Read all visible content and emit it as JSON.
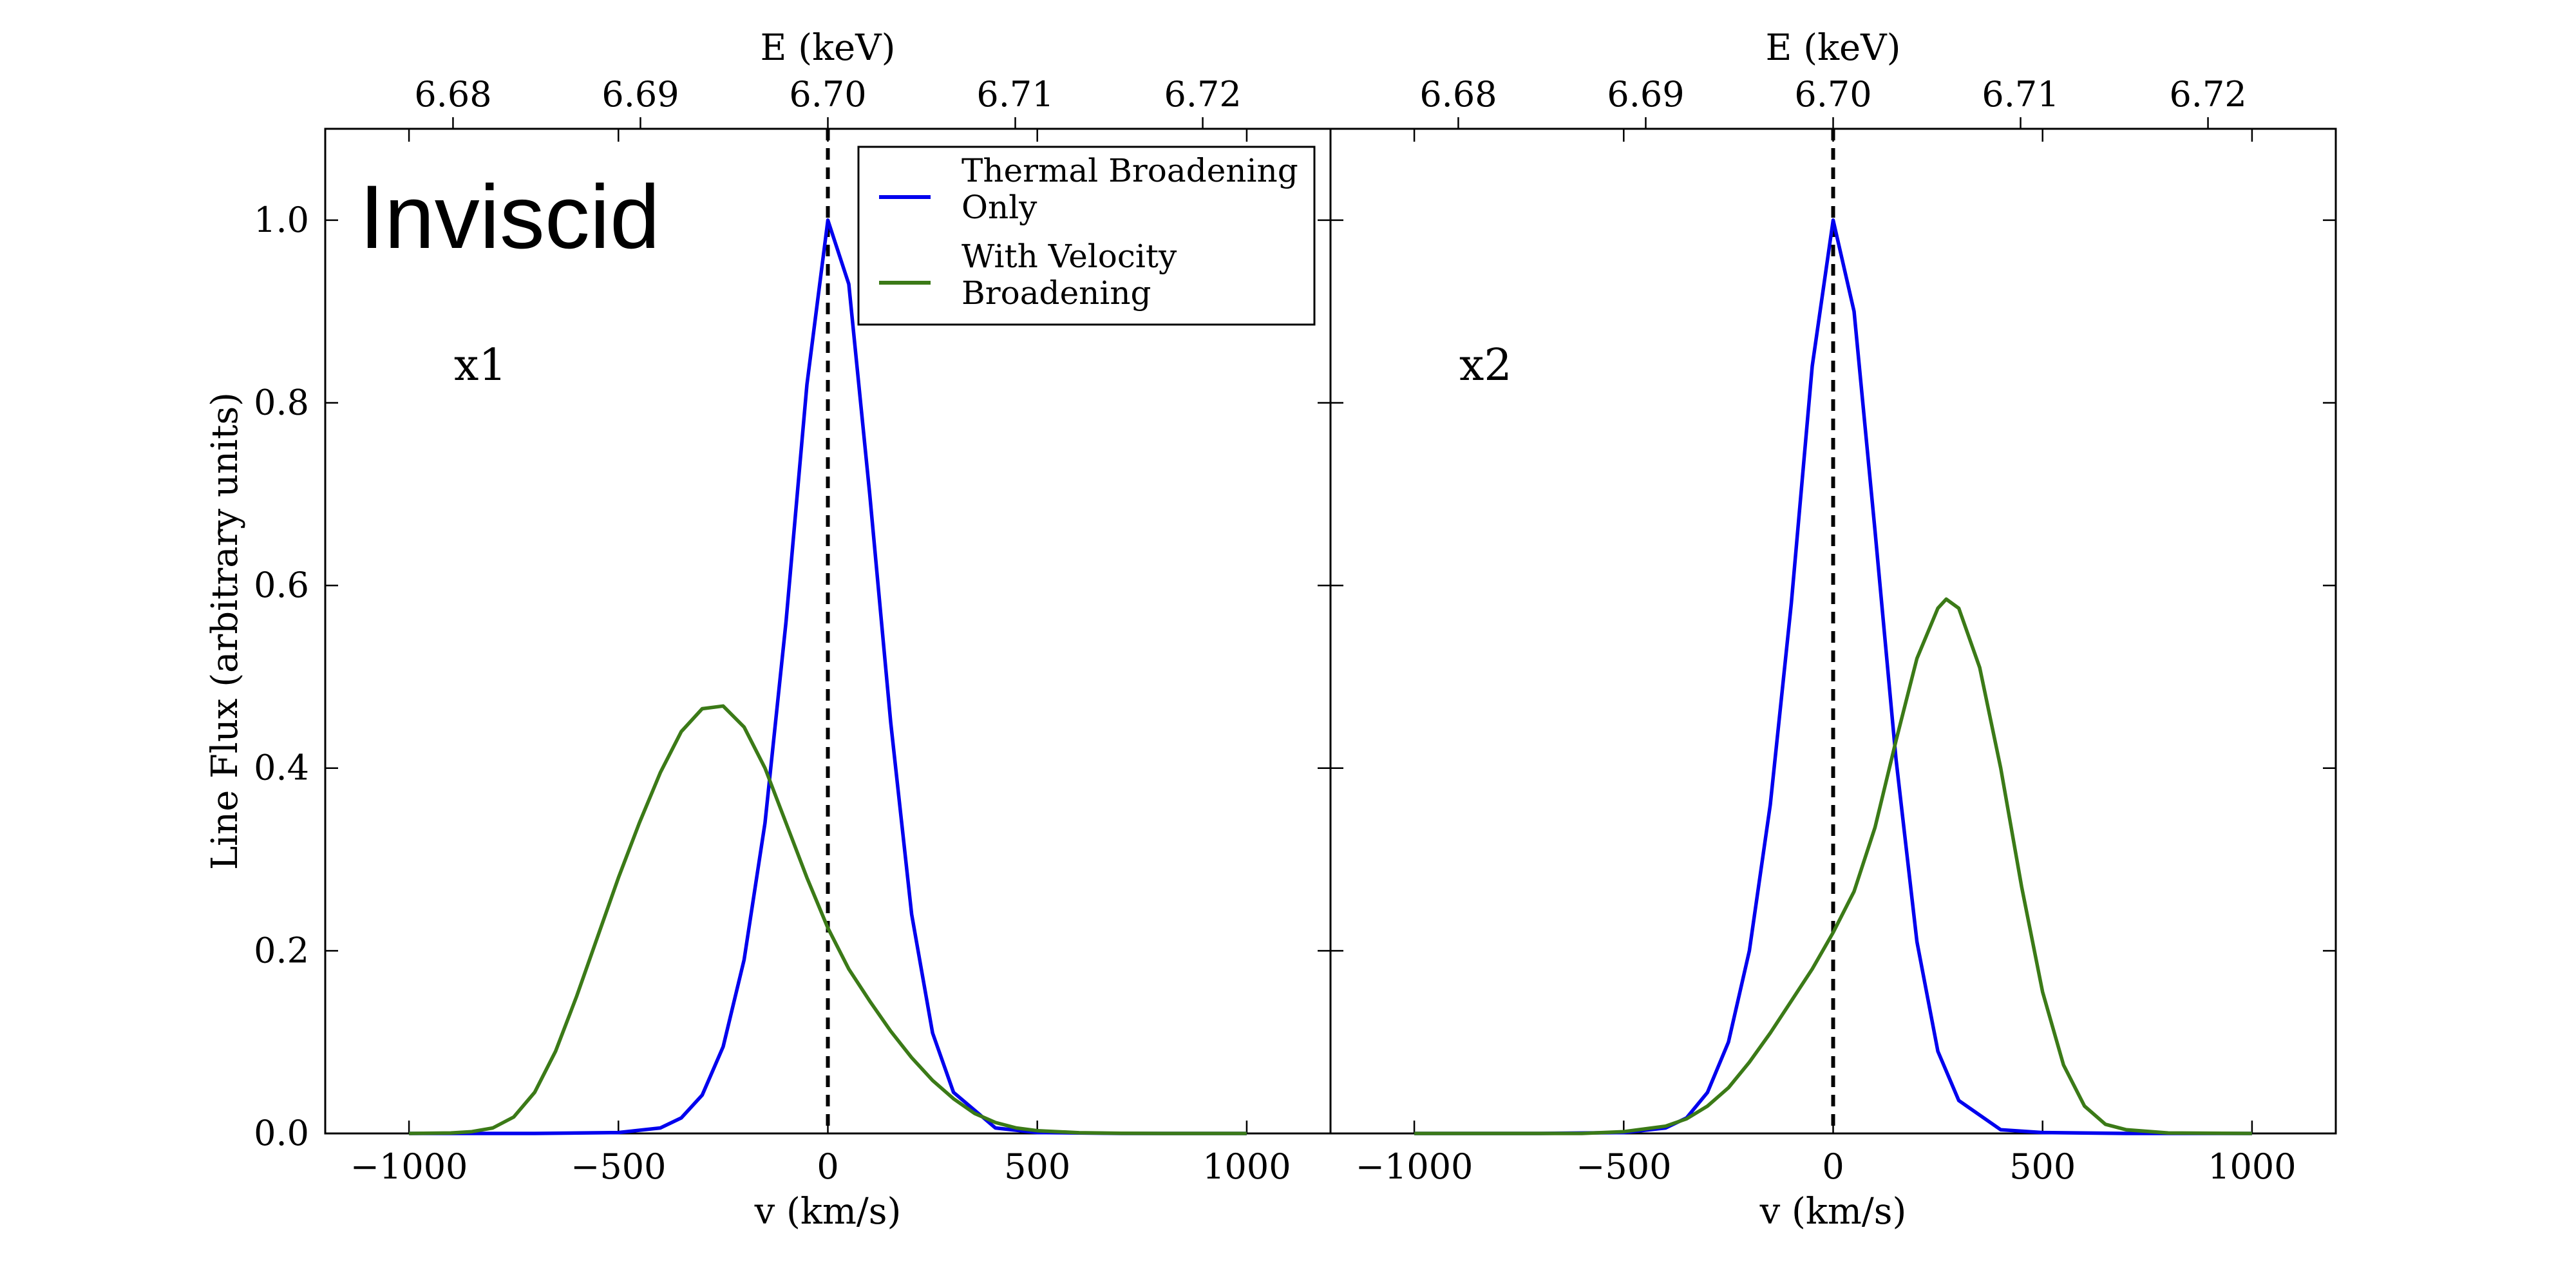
{
  "figure_label": "Inviscid",
  "shared_axes": {
    "xlabel": "v (km/s)",
    "xlim": [
      -1200,
      1200
    ],
    "xticks": [
      -1000,
      -500,
      0,
      500,
      1000
    ],
    "xtick_labels": [
      "−1000",
      "−500",
      "0",
      "500",
      "1000"
    ],
    "top_xlabel": "E (keV)",
    "top_xticks": [
      "6.68",
      "6.69",
      "6.70",
      "6.71",
      "6.72"
    ],
    "ylabel": "Line Flux (arbitrary units)",
    "ylim": [
      0,
      1.1
    ],
    "yticks": [
      "0.0",
      "0.2",
      "0.4",
      "0.6",
      "0.8",
      "1.0"
    ]
  },
  "legend": {
    "placement": "upper-right of left panel",
    "entries": [
      {
        "line1": "Thermal Broadening",
        "line2": "Only",
        "color": "#0000ee"
      },
      {
        "line1": "With Velocity",
        "line2": "Broadening",
        "color": "#3b7a17"
      }
    ]
  },
  "chart_data": [
    {
      "type": "line",
      "panel_label": "x1",
      "reference_line": {
        "x": 0,
        "style": "dashed"
      },
      "series": [
        {
          "color": "#0000ee",
          "x": [
            -1000,
            -700,
            -500,
            -400,
            -350,
            -300,
            -250,
            -200,
            -150,
            -100,
            -50,
            0,
            50,
            100,
            150,
            200,
            250,
            300,
            400,
            500,
            700,
            1000
          ],
          "y": [
            0,
            0,
            0.001,
            0.006,
            0.017,
            0.042,
            0.095,
            0.19,
            0.34,
            0.56,
            0.82,
            1.0,
            0.93,
            0.7,
            0.45,
            0.24,
            0.11,
            0.045,
            0.006,
            0.001,
            0,
            0
          ]
        },
        {
          "color": "#3b7a17",
          "x": [
            -1000,
            -900,
            -850,
            -800,
            -750,
            -700,
            -650,
            -600,
            -550,
            -500,
            -450,
            -400,
            -350,
            -300,
            -250,
            -200,
            -150,
            -100,
            -50,
            0,
            50,
            100,
            150,
            200,
            250,
            300,
            350,
            400,
            450,
            500,
            600,
            700,
            800,
            1000
          ],
          "y": [
            0,
            0.0005,
            0.002,
            0.006,
            0.018,
            0.045,
            0.09,
            0.15,
            0.215,
            0.28,
            0.34,
            0.395,
            0.44,
            0.465,
            0.468,
            0.445,
            0.4,
            0.34,
            0.28,
            0.225,
            0.18,
            0.145,
            0.112,
            0.083,
            0.058,
            0.038,
            0.022,
            0.012,
            0.006,
            0.003,
            0.0008,
            0.0002,
            0,
            0
          ]
        }
      ]
    },
    {
      "type": "line",
      "panel_label": "x2",
      "reference_line": {
        "x": 0,
        "style": "dashed"
      },
      "series": [
        {
          "color": "#0000ee",
          "x": [
            -1000,
            -700,
            -500,
            -400,
            -350,
            -300,
            -250,
            -200,
            -150,
            -100,
            -50,
            0,
            50,
            100,
            150,
            200,
            250,
            300,
            400,
            500,
            700,
            1000
          ],
          "y": [
            0,
            0,
            0.001,
            0.006,
            0.017,
            0.045,
            0.1,
            0.2,
            0.36,
            0.58,
            0.84,
            1.0,
            0.9,
            0.66,
            0.41,
            0.21,
            0.09,
            0.036,
            0.004,
            0.001,
            0,
            0
          ]
        },
        {
          "color": "#3b7a17",
          "x": [
            -1000,
            -600,
            -500,
            -400,
            -350,
            -300,
            -250,
            -200,
            -150,
            -100,
            -50,
            0,
            50,
            100,
            150,
            200,
            250,
            270,
            300,
            350,
            400,
            450,
            500,
            550,
            600,
            650,
            700,
            800,
            1000
          ],
          "y": [
            0,
            0,
            0.002,
            0.008,
            0.016,
            0.03,
            0.05,
            0.078,
            0.11,
            0.145,
            0.18,
            0.22,
            0.265,
            0.335,
            0.43,
            0.52,
            0.575,
            0.585,
            0.575,
            0.51,
            0.4,
            0.27,
            0.155,
            0.075,
            0.03,
            0.01,
            0.004,
            0.0005,
            0
          ]
        }
      ]
    }
  ]
}
